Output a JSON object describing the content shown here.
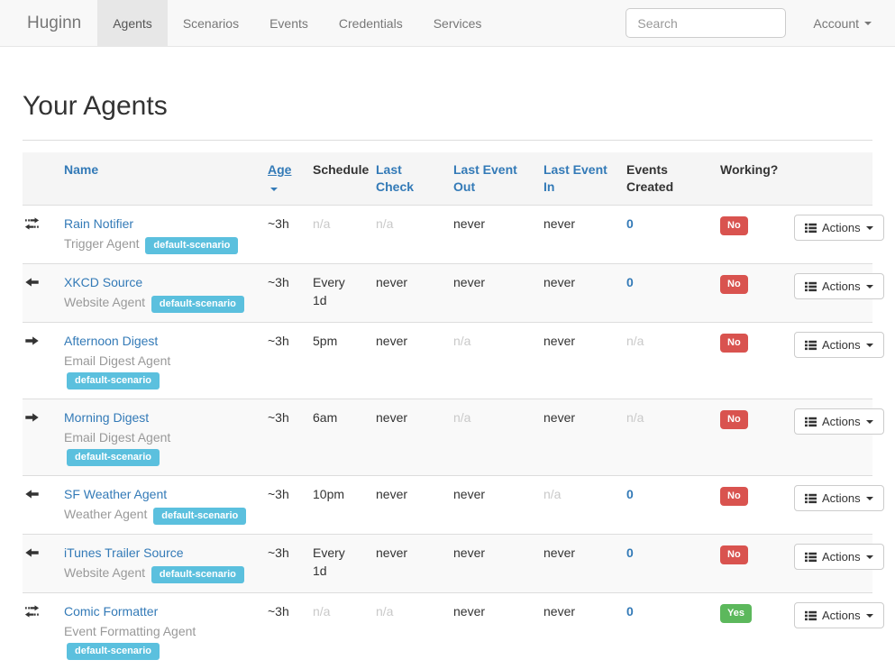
{
  "navbar": {
    "brand": "Huginn",
    "items": [
      {
        "label": "Agents",
        "active": true
      },
      {
        "label": "Scenarios",
        "active": false
      },
      {
        "label": "Events",
        "active": false
      },
      {
        "label": "Credentials",
        "active": false
      },
      {
        "label": "Services",
        "active": false
      }
    ],
    "search": {
      "placeholder": "Search"
    },
    "account": {
      "label": "Account"
    }
  },
  "page": {
    "heading": "Your Agents"
  },
  "table": {
    "headers": {
      "name": "Name",
      "age": "Age",
      "schedule": "Schedule",
      "last_check": "Last Check",
      "last_event_out": "Last Event Out",
      "last_event_in": "Last Event In",
      "events_created": "Events Created",
      "working": "Working?"
    },
    "sort": {
      "column": "Age",
      "direction": "desc"
    },
    "actions_label": "Actions",
    "rows": [
      {
        "icon": "exchange",
        "name": "Rain Notifier",
        "type": "Trigger Agent",
        "scenario": "default-scenario",
        "age": "~3h",
        "schedule": "n/a",
        "last_check": "n/a",
        "last_event_out": "never",
        "last_event_in": "never",
        "events_created": "0",
        "working": "No"
      },
      {
        "icon": "arrow-left",
        "name": "XKCD Source",
        "type": "Website Agent",
        "scenario": "default-scenario",
        "age": "~3h",
        "schedule": "Every 1d",
        "last_check": "never",
        "last_event_out": "never",
        "last_event_in": "never",
        "events_created": "0",
        "working": "No"
      },
      {
        "icon": "arrow-right",
        "name": "Afternoon Digest",
        "type": "Email Digest Agent",
        "scenario": "default-scenario",
        "age": "~3h",
        "schedule": "5pm",
        "last_check": "never",
        "last_event_out": "n/a",
        "last_event_in": "never",
        "events_created": "n/a",
        "working": "No"
      },
      {
        "icon": "arrow-right",
        "name": "Morning Digest",
        "type": "Email Digest Agent",
        "scenario": "default-scenario",
        "age": "~3h",
        "schedule": "6am",
        "last_check": "never",
        "last_event_out": "n/a",
        "last_event_in": "never",
        "events_created": "n/a",
        "working": "No"
      },
      {
        "icon": "arrow-left",
        "name": "SF Weather Agent",
        "type": "Weather Agent",
        "scenario": "default-scenario",
        "age": "~3h",
        "schedule": "10pm",
        "last_check": "never",
        "last_event_out": "never",
        "last_event_in": "n/a",
        "events_created": "0",
        "working": "No"
      },
      {
        "icon": "arrow-left",
        "name": "iTunes Trailer Source",
        "type": "Website Agent",
        "scenario": "default-scenario",
        "age": "~3h",
        "schedule": "Every 1d",
        "last_check": "never",
        "last_event_out": "never",
        "last_event_in": "never",
        "events_created": "0",
        "working": "No"
      },
      {
        "icon": "exchange",
        "name": "Comic Formatter",
        "type": "Event Formatting Agent",
        "scenario": "default-scenario",
        "age": "~3h",
        "schedule": "n/a",
        "last_check": "n/a",
        "last_event_out": "never",
        "last_event_in": "never",
        "events_created": "0",
        "working": "Yes"
      }
    ]
  },
  "colors": {
    "accent_blue": "#337ab7",
    "badge_info": "#5bc0de",
    "badge_danger": "#d9534f",
    "badge_success": "#5cb85c",
    "na_gray": "#c9c9c9",
    "navbar_bg": "#f8f8f8",
    "stripe_bg": "#f9f9f9"
  }
}
